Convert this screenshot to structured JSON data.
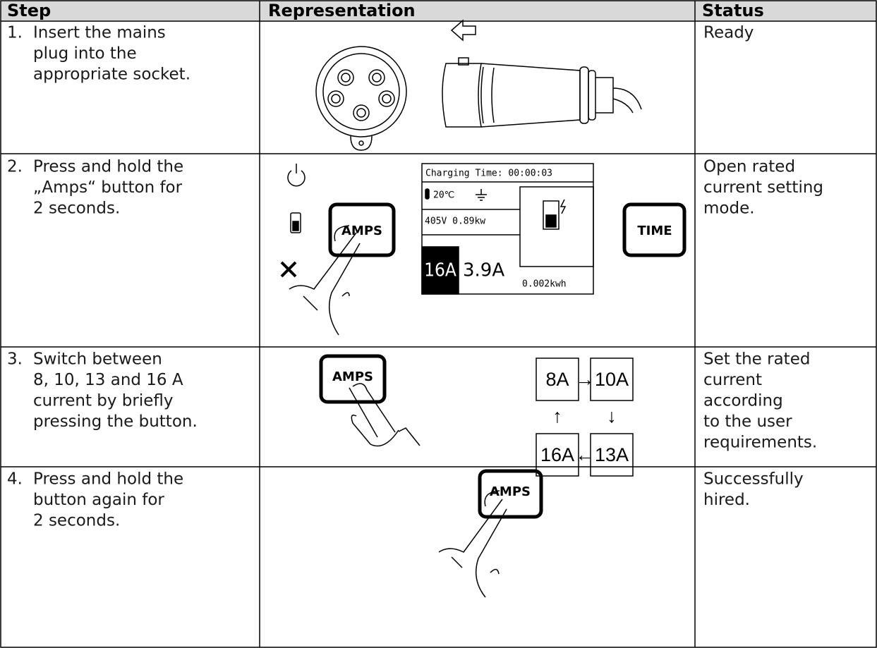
{
  "header": {
    "columns": [
      "Step",
      "Representation",
      "Status"
    ]
  },
  "table": {
    "rows": [
      {
        "number": "1.",
        "step": [
          "Insert the mains",
          "plug into the",
          "appropriate socket."
        ],
        "status": [
          "Ready"
        ]
      },
      {
        "number": "2.",
        "step": [
          "Press and hold the",
          "„Amps“ button for",
          "2 seconds."
        ],
        "status": [
          "Open rated",
          "current setting",
          "mode."
        ],
        "illustration": {
          "buttons": [
            "AMPS",
            "TIME"
          ],
          "display": {
            "charging_time": "Charging Time: 00:00:03",
            "temperature": "20℃",
            "voltage_power": "405V 0.89kw",
            "rated": "16A",
            "current": "3.9A",
            "energy": "0.002kwh"
          }
        }
      },
      {
        "number": "3.",
        "step": [
          "Switch between",
          "8, 10, 13 and 16 A",
          "current by briefly",
          "pressing the button."
        ],
        "status": [
          "Set the rated",
          "current",
          "according",
          "to the user",
          "requirements."
        ],
        "illustration": {
          "button": "AMPS",
          "cycle": [
            "8A",
            "10A",
            "13A",
            "16A"
          ],
          "arrows": [
            "→",
            "↓",
            "←",
            "↑"
          ]
        }
      },
      {
        "number": "4.",
        "step": [
          "Press and hold the",
          "button again for",
          "2 seconds."
        ],
        "status": [
          "Successfully",
          "hired."
        ],
        "illustration": {
          "button": "AMPS"
        }
      }
    ]
  }
}
